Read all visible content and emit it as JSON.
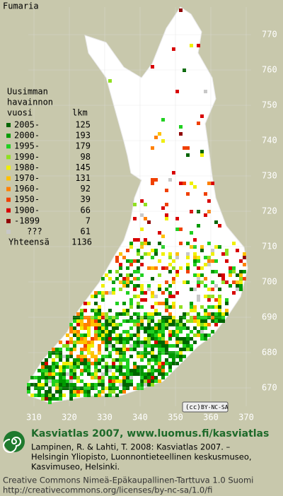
{
  "header": {
    "title": "Fumaria"
  },
  "legend": {
    "heading": [
      "Uusimman",
      "havainnon",
      "vuosi"
    ],
    "count_heading": "lkm",
    "items": [
      {
        "label": "2005-",
        "count": 125,
        "color": "#006400"
      },
      {
        "label": "2000-",
        "count": 193,
        "color": "#009a00"
      },
      {
        "label": "1995-",
        "count": 179,
        "color": "#20d020"
      },
      {
        "label": "1990-",
        "count": 98,
        "color": "#90e020"
      },
      {
        "label": "1980-",
        "count": 145,
        "color": "#f0f000"
      },
      {
        "label": "1970-",
        "count": 131,
        "color": "#ffc000"
      },
      {
        "label": "1960-",
        "count": 92,
        "color": "#ff8000"
      },
      {
        "label": "1950-",
        "count": 39,
        "color": "#f04000"
      },
      {
        "label": "1900-",
        "count": 66,
        "color": "#d80000"
      },
      {
        "label": "-1899",
        "count": 7,
        "color": "#900000"
      },
      {
        "label": "???",
        "count": 61,
        "color": "#c8c8c8"
      }
    ],
    "total": {
      "label": "Yhteensä",
      "count": 1136
    }
  },
  "map": {
    "grid_y": [
      770,
      760,
      750,
      740,
      730,
      720,
      710,
      700,
      690,
      680,
      670
    ],
    "grid_x": [
      310,
      320,
      330,
      340,
      350,
      360,
      370
    ],
    "badge": "BY-NC-SA"
  },
  "footer": {
    "site": "Kasviatlas 2007, www.luomus.fi/kasviatlas",
    "citation": [
      "Lampinen, R. & Lahti, T. 2008: Kasviatlas 2007. –",
      "Helsingin Yliopisto, Luonnontieteellinen keskusmuseo,",
      "Kasvimuseo, Helsinki."
    ],
    "license": [
      "Creative Commons Nimeä-Epäkaupallinen-Tarttuva 1.0 Suomi",
      "http://creativecommons.org/licenses/by-nc-sa/1.0/fi"
    ]
  }
}
